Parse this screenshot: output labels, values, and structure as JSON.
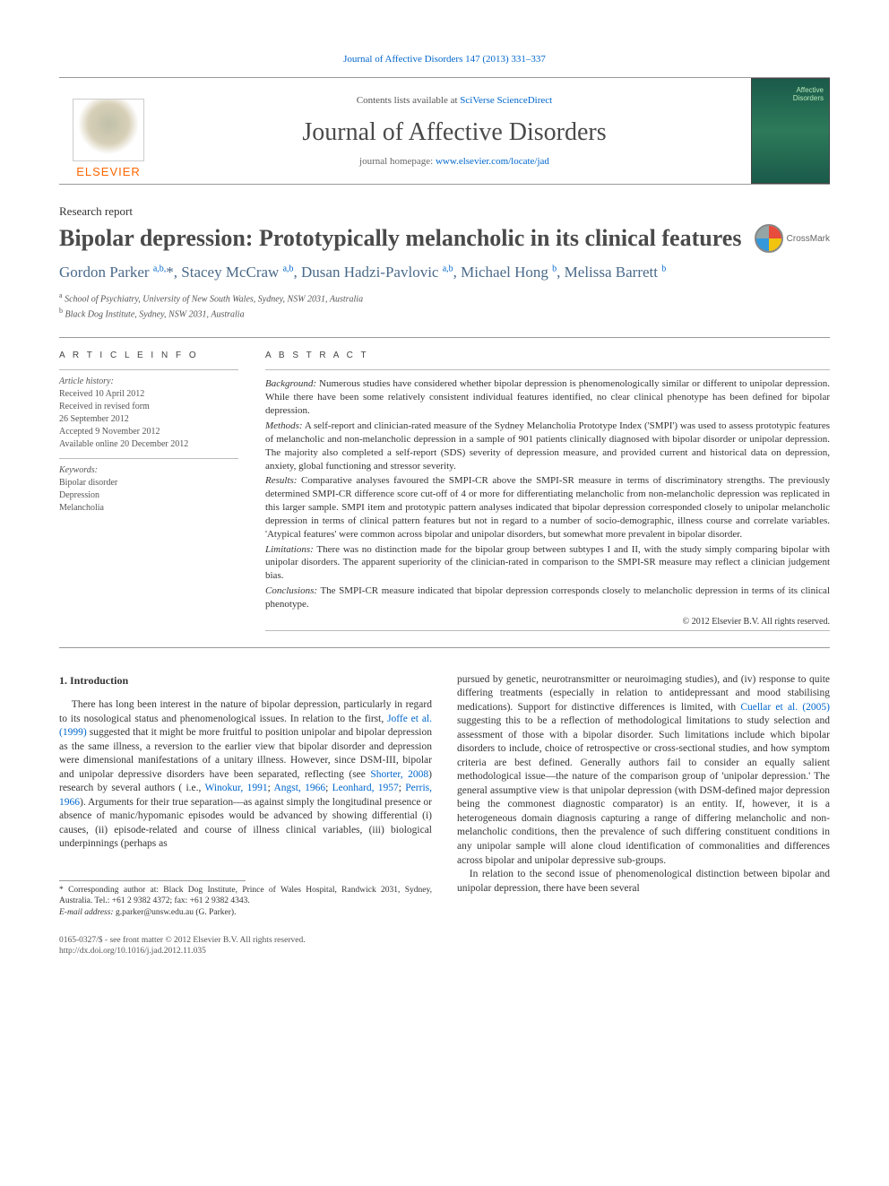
{
  "top_link": "Journal of Affective Disorders 147 (2013) 331–337",
  "header": {
    "contents_prefix": "Contents lists available at ",
    "contents_link": "SciVerse ScienceDirect",
    "journal_title": "Journal of Affective Disorders",
    "homepage_prefix": "journal homepage: ",
    "homepage_link": "www.elsevier.com/locate/jad",
    "elsevier": "ELSEVIER"
  },
  "article": {
    "section_label": "Research report",
    "title": "Bipolar depression: Prototypically melancholic in its clinical features",
    "crossmark": "CrossMark",
    "authors_html": "Gordon Parker <sup>a,b,</sup>*, Stacey McCraw <sup>a,b</sup>, Dusan Hadzi-Pavlovic <sup>a,b</sup>, Michael Hong <sup>b</sup>, Melissa Barrett <sup>b</sup>",
    "affiliations": [
      "a School of Psychiatry, University of New South Wales, Sydney, NSW 2031, Australia",
      "b Black Dog Institute, Sydney, NSW 2031, Australia"
    ]
  },
  "info": {
    "head": "A R T I C L E   I N F O",
    "history_label": "Article history:",
    "history": [
      "Received 10 April 2012",
      "Received in revised form",
      "26 September 2012",
      "Accepted 9 November 2012",
      "Available online 20 December 2012"
    ],
    "keywords_label": "Keywords:",
    "keywords": [
      "Bipolar disorder",
      "Depression",
      "Melancholia"
    ]
  },
  "abstract": {
    "head": "A B S T R A C T",
    "paras": [
      {
        "label": "Background:",
        "text": " Numerous studies have considered whether bipolar depression is phenomenologically similar or different to unipolar depression. While there have been some relatively consistent individual features identified, no clear clinical phenotype has been defined for bipolar depression."
      },
      {
        "label": "Methods:",
        "text": " A self-report and clinician-rated measure of the Sydney Melancholia Prototype Index ('SMPI') was used to assess prototypic features of melancholic and non-melancholic depression in a sample of 901 patients clinically diagnosed with bipolar disorder or unipolar depression. The majority also completed a self-report (SDS) severity of depression measure, and provided current and historical data on depression, anxiety, global functioning and stressor severity."
      },
      {
        "label": "Results:",
        "text": " Comparative analyses favoured the SMPI-CR above the SMPI-SR measure in terms of discriminatory strengths. The previously determined SMPI-CR difference score cut-off of 4 or more for differentiating melancholic from non-melancholic depression was replicated in this larger sample. SMPI item and prototypic pattern analyses indicated that bipolar depression corresponded closely to unipolar melancholic depression in terms of clinical pattern features but not in regard to a number of socio-demographic, illness course and correlate variables. 'Atypical features' were common across bipolar and unipolar disorders, but somewhat more prevalent in bipolar disorder."
      },
      {
        "label": "Limitations:",
        "text": " There was no distinction made for the bipolar group between subtypes I and II, with the study simply comparing bipolar with unipolar disorders. The apparent superiority of the clinician-rated in comparison to the SMPI-SR measure may reflect a clinician judgement bias."
      },
      {
        "label": "Conclusions:",
        "text": " The SMPI-CR measure indicated that bipolar depression corresponds closely to melancholic depression in terms of its clinical phenotype."
      }
    ],
    "copyright": "© 2012 Elsevier B.V. All rights reserved."
  },
  "body": {
    "h1": "1.  Introduction",
    "col1_p1a": "There has long been interest in the nature of bipolar depression, particularly in regard to its nosological status and phenomenological issues. In relation to the first, ",
    "col1_c1": "Joffe et al. (1999)",
    "col1_p1b": " suggested that it might be more fruitful to position unipolar and bipolar depression as the same illness, a reversion to the earlier view that bipolar disorder and depression were dimensional manifestations of a unitary illness. However, since DSM-III, bipolar and unipolar depressive disorders have been separated, reflecting (see ",
    "col1_c2": "Shorter, 2008",
    "col1_p1c": ") research by several authors ( i.e., ",
    "col1_c3": "Winokur, 1991",
    "col1_sep1": "; ",
    "col1_c4": "Angst, 1966",
    "col1_sep2": "; ",
    "col1_c5": "Leonhard, 1957",
    "col1_sep3": "; ",
    "col1_c6": "Perris, 1966",
    "col1_p1d": "). Arguments for their true separation—as against simply the longitudinal presence or absence of manic/hypomanic episodes would be advanced by showing differential (i) causes, (ii) episode-related and course of illness clinical variables, (iii) biological underpinnings (perhaps as",
    "col2_p1a": "pursued by genetic, neurotransmitter or neuroimaging studies), and (iv) response to quite differing treatments (especially in relation to antidepressant and mood stabilising medications). Support for distinctive differences is limited, with ",
    "col2_c1": "Cuellar et al. (2005)",
    "col2_p1b": " suggesting this to be a reflection of methodological limitations to study selection and assessment of those with a bipolar disorder. Such limitations include which bipolar disorders to include, choice of retrospective or cross-sectional studies, and how symptom criteria are best defined. Generally authors fail to consider an equally salient methodological issue—the nature of the comparison group of 'unipolar depression.' The general assumptive view is that unipolar depression (with DSM-defined major depression being the commonest diagnostic comparator) is an entity. If, however, it is a heterogeneous domain diagnosis capturing a range of differing melancholic and non-melancholic conditions, then the prevalence of such differing constituent conditions in any unipolar sample will alone cloud identification of commonalities and differences across bipolar and unipolar depressive sub-groups.",
    "col2_p2": "In relation to the second issue of phenomenological distinction between bipolar and unipolar depression, there have been several"
  },
  "footnote": {
    "corr": "* Corresponding author at: Black Dog Institute, Prince of Wales Hospital, Randwick 2031, Sydney, Australia. Tel.: +61 2 9382 4372; fax: +61 2 9382 4343.",
    "email_label": "E-mail address:",
    "email": " g.parker@unsw.edu.au (G. Parker)."
  },
  "bottom": {
    "issn": "0165-0327/$ - see front matter © 2012 Elsevier B.V. All rights reserved.",
    "doi": "http://dx.doi.org/10.1016/j.jad.2012.11.035"
  },
  "colors": {
    "link": "#0066cc",
    "orange": "#ff6600",
    "text": "#333333"
  }
}
